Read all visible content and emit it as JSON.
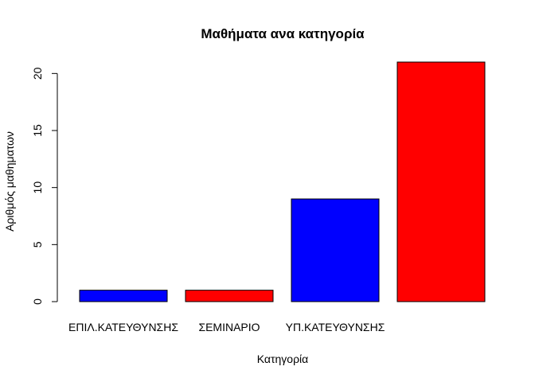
{
  "chart_data": {
    "type": "bar",
    "title": "Μαθήματα ανα κατηγορία",
    "xlabel": "Κατηγορία",
    "ylabel": "Αριθμός μαθηματων",
    "categories": [
      "ΕΠΙΛ.ΚΑΤΕΥΘΥΝΣΗΣ",
      "ΣΕΜΙΝΑΡΙΟ",
      "ΥΠ.ΚΑΤΕΥΘΥΝΣΗΣ",
      ""
    ],
    "values": [
      1,
      1,
      9,
      21
    ],
    "colors": [
      "#0000ff",
      "#ff0000",
      "#0000ff",
      "#ff0000"
    ],
    "yticks": [
      0,
      5,
      10,
      15,
      20
    ],
    "ylim": [
      0,
      21
    ],
    "grid": false,
    "legend": "none"
  }
}
